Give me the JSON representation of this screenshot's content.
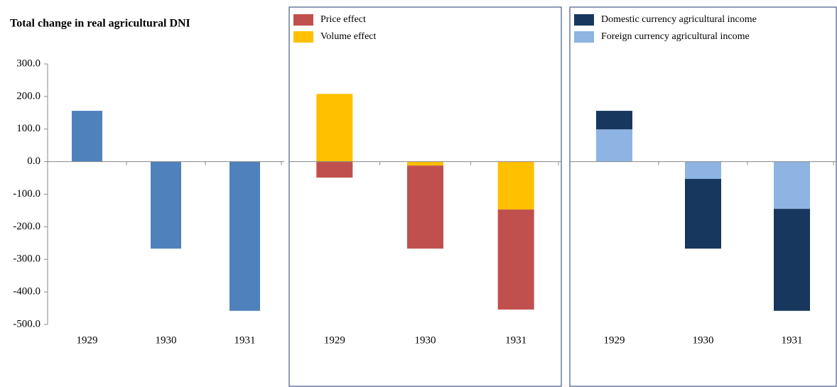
{
  "chart_data": [
    {
      "type": "bar",
      "title": "Total change in real agricultural DNI",
      "categories": [
        "1929",
        "1930",
        "1931"
      ],
      "values": [
        156,
        -267,
        -458
      ],
      "color": "#4f81bd",
      "ylim": [
        -500,
        300
      ],
      "yticks": [
        {
          "value": -500,
          "label": "-500.0"
        },
        {
          "value": -400,
          "label": "-400.0"
        },
        {
          "value": -300,
          "label": "-300.0"
        },
        {
          "value": -200,
          "label": "-200.0"
        },
        {
          "value": -100,
          "label": "-100.0"
        },
        {
          "value": 0,
          "label": "0.0"
        },
        {
          "value": 100,
          "label": "100.0"
        },
        {
          "value": 200,
          "label": "200.0"
        },
        {
          "value": 300,
          "label": "300.0"
        }
      ]
    },
    {
      "type": "stacked_bar",
      "categories": [
        "1929",
        "1930",
        "1931"
      ],
      "ylim": [
        -500,
        300
      ],
      "series": [
        {
          "name": "Price effect",
          "color": "#c0504d",
          "values": [
            -49,
            -255,
            -307
          ]
        },
        {
          "name": "Volume effect",
          "color": "#ffc000",
          "values": [
            208,
            -12,
            -147
          ]
        }
      ]
    },
    {
      "type": "stacked_bar",
      "categories": [
        "1929",
        "1930",
        "1931"
      ],
      "ylim": [
        -500,
        300
      ],
      "series": [
        {
          "name": "Domestic currency agricultural income",
          "color": "#17375e",
          "values": [
            57,
            -214,
            -313
          ]
        },
        {
          "name": "Foreign currency agricultural income",
          "color": "#8db4e2",
          "values": [
            99,
            -53,
            -145
          ]
        }
      ]
    }
  ]
}
